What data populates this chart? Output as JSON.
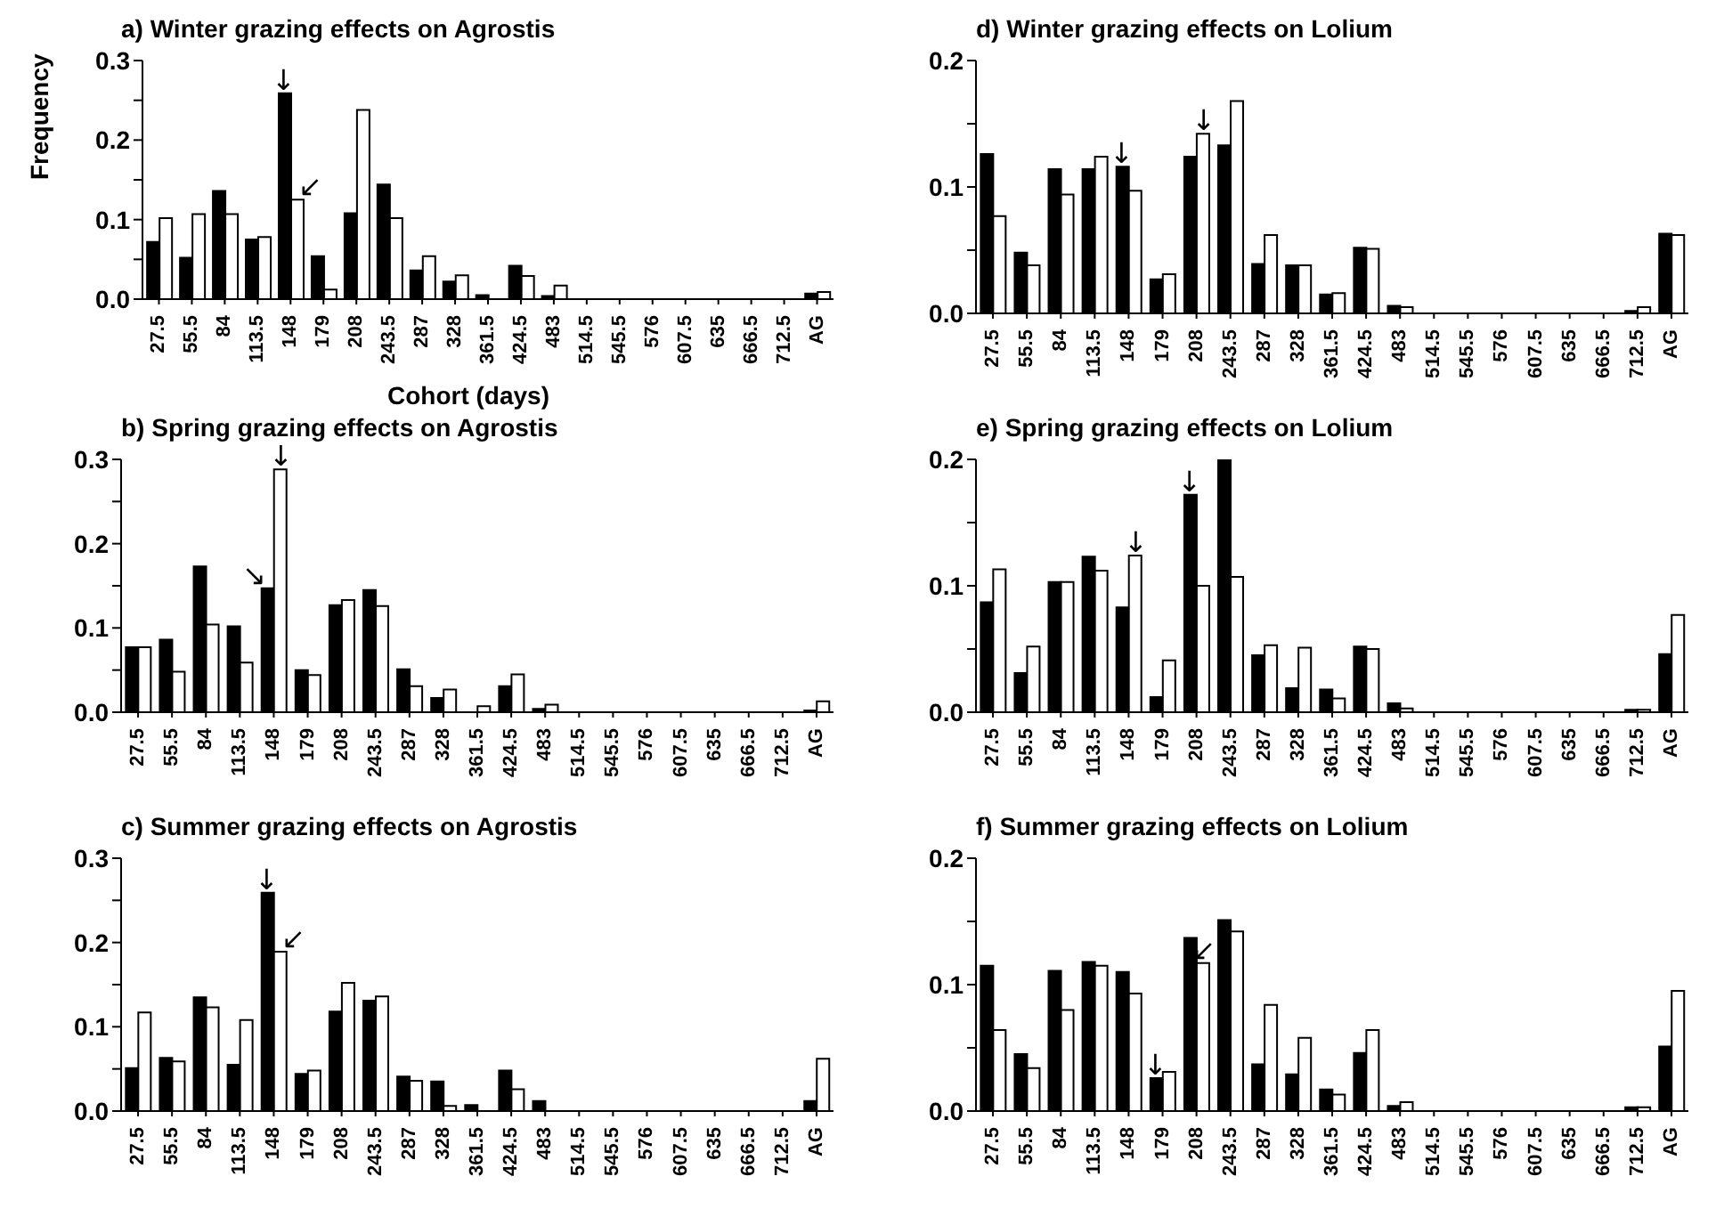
{
  "chart_data": [
    {
      "type": "bar",
      "title": "a) Winter grazing effects on Agrostis",
      "xlabel": "Cohort (days)",
      "ylabel": "Frequency",
      "categories": [
        "27.5",
        "55.5",
        "84",
        "113.5",
        "148",
        "179",
        "208",
        "243.5",
        "287",
        "328",
        "361.5",
        "424.5",
        "483",
        "514.5",
        "545.5",
        "576",
        "607.5",
        "635",
        "666.5",
        "712.5",
        "AG"
      ],
      "series": [
        {
          "color": "#000000",
          "values": [
            0.072,
            0.052,
            0.136,
            0.075,
            0.259,
            0.054,
            0.108,
            0.144,
            0.036,
            0.022,
            0.005,
            0.042,
            0.004,
            0,
            0,
            0,
            0,
            0,
            0,
            0,
            0.007
          ]
        },
        {
          "color": "#ffffff",
          "values": [
            0.102,
            0.107,
            0.107,
            0.078,
            0.125,
            0.012,
            0.238,
            0.102,
            0.054,
            0.03,
            0,
            0.029,
            0.017,
            0,
            0,
            0,
            0,
            0,
            0,
            0,
            0.009
          ]
        }
      ],
      "ylim": [
        0,
        0.3
      ],
      "yticks": [
        {
          "value": 0,
          "label": "0.0"
        },
        {
          "value": 0.05,
          "label": null
        },
        {
          "value": 0.1,
          "label": "0.1"
        },
        {
          "value": 0.15,
          "label": null
        },
        {
          "value": 0.2,
          "label": "0.2"
        },
        {
          "value": 0.25,
          "label": null
        },
        {
          "value": 0.3,
          "label": "0.3"
        }
      ],
      "grid": false,
      "legend": false,
      "annotations": [
        {
          "text": "↓",
          "x": "148",
          "y": 0.259
        },
        {
          "text": "↙",
          "x": "148",
          "y": 0.125
        }
      ]
    },
    {
      "type": "bar",
      "title": "b) Spring grazing effects on Agrostis",
      "categories": [
        "27.5",
        "55.5",
        "84",
        "113.5",
        "148",
        "179",
        "208",
        "243.5",
        "287",
        "328",
        "361.5",
        "424.5",
        "483",
        "514.5",
        "545.5",
        "576",
        "607.5",
        "635",
        "666.5",
        "712.5",
        "AG"
      ],
      "series": [
        {
          "color": "#000000",
          "values": [
            0.077,
            0.086,
            0.173,
            0.102,
            0.147,
            0.05,
            0.127,
            0.145,
            0.051,
            0.017,
            0,
            0.031,
            0.004,
            0,
            0,
            0,
            0,
            0,
            0,
            0,
            0.002
          ]
        },
        {
          "color": "#ffffff",
          "values": [
            0.077,
            0.048,
            0.104,
            0.059,
            0.288,
            0.044,
            0.133,
            0.126,
            0.031,
            0.027,
            0.007,
            0.045,
            0.009,
            0,
            0,
            0,
            0,
            0,
            0,
            0,
            0.013
          ]
        }
      ],
      "ylim": [
        0,
        0.3
      ],
      "yticks": [
        {
          "value": 0,
          "label": "0.0"
        },
        {
          "value": 0.05,
          "label": null
        },
        {
          "value": 0.1,
          "label": "0.1"
        },
        {
          "value": 0.15,
          "label": null
        },
        {
          "value": 0.2,
          "label": "0.2"
        },
        {
          "value": 0.25,
          "label": null
        },
        {
          "value": 0.3,
          "label": "0.3"
        }
      ],
      "grid": false,
      "legend": false,
      "annotations": [
        {
          "text": "↘",
          "x": "148",
          "y": 0.147
        },
        {
          "text": "↓",
          "x": "148",
          "y": 0.288
        }
      ]
    },
    {
      "type": "bar",
      "title": "c) Summer grazing effects on Agrostis",
      "categories": [
        "27.5",
        "55.5",
        "84",
        "113.5",
        "148",
        "179",
        "208",
        "243.5",
        "287",
        "328",
        "361.5",
        "424.5",
        "483",
        "514.5",
        "545.5",
        "576",
        "607.5",
        "635",
        "666.5",
        "712.5",
        "AG"
      ],
      "series": [
        {
          "color": "#000000",
          "values": [
            0.051,
            0.063,
            0.135,
            0.055,
            0.259,
            0.044,
            0.118,
            0.131,
            0.041,
            0.035,
            0.007,
            0.048,
            0.012,
            0,
            0,
            0,
            0,
            0,
            0,
            0,
            0.012
          ]
        },
        {
          "color": "#ffffff",
          "values": [
            0.117,
            0.059,
            0.123,
            0.108,
            0.189,
            0.048,
            0.152,
            0.136,
            0.036,
            0.006,
            0,
            0.026,
            0,
            0,
            0,
            0,
            0,
            0,
            0,
            0,
            0.062
          ]
        }
      ],
      "ylim": [
        0,
        0.3
      ],
      "yticks": [
        {
          "value": 0,
          "label": "0.0"
        },
        {
          "value": 0.05,
          "label": null
        },
        {
          "value": 0.1,
          "label": "0.1"
        },
        {
          "value": 0.15,
          "label": null
        },
        {
          "value": 0.2,
          "label": "0.2"
        },
        {
          "value": 0.25,
          "label": null
        },
        {
          "value": 0.3,
          "label": "0.3"
        }
      ],
      "grid": false,
      "legend": false,
      "annotations": [
        {
          "text": "↓",
          "x": "148",
          "y": 0.259
        },
        {
          "text": "↙",
          "x": "148",
          "y": 0.189
        }
      ]
    },
    {
      "type": "bar",
      "title": "d) Winter grazing effects on Lolium",
      "categories": [
        "27.5",
        "55.5",
        "84",
        "113.5",
        "148",
        "179",
        "208",
        "243.5",
        "287",
        "328",
        "361.5",
        "424.5",
        "483",
        "514.5",
        "545.5",
        "576",
        "607.5",
        "635",
        "666.5",
        "712.5",
        "AG"
      ],
      "series": [
        {
          "color": "#000000",
          "values": [
            0.126,
            0.048,
            0.114,
            0.114,
            0.116,
            0.027,
            0.124,
            0.133,
            0.039,
            0.038,
            0.015,
            0.052,
            0.006,
            0,
            0,
            0,
            0,
            0,
            0,
            0.002,
            0.063
          ]
        },
        {
          "color": "#ffffff",
          "values": [
            0.077,
            0.038,
            0.094,
            0.124,
            0.097,
            0.031,
            0.142,
            0.168,
            0.062,
            0.038,
            0.016,
            0.051,
            0.005,
            0,
            0,
            0,
            0,
            0,
            0,
            0.005,
            0.062
          ]
        }
      ],
      "ylim": [
        0,
        0.2
      ],
      "yticks": [
        {
          "value": 0,
          "label": "0.0"
        },
        {
          "value": 0.05,
          "label": null
        },
        {
          "value": 0.1,
          "label": "0.1"
        },
        {
          "value": 0.15,
          "label": null
        },
        {
          "value": 0.2,
          "label": "0.2"
        }
      ],
      "grid": false,
      "legend": false,
      "annotations": [
        {
          "text": "↓",
          "x": "148",
          "y": 0.116
        },
        {
          "text": "↓",
          "x": "208",
          "y": 0.142
        }
      ]
    },
    {
      "type": "bar",
      "title": "e) Spring grazing effects on Lolium",
      "categories": [
        "27.5",
        "55.5",
        "84",
        "113.5",
        "148",
        "179",
        "208",
        "243.5",
        "287",
        "328",
        "361.5",
        "424.5",
        "483",
        "514.5",
        "545.5",
        "576",
        "607.5",
        "635",
        "666.5",
        "712.5",
        "AG"
      ],
      "series": [
        {
          "color": "#000000",
          "values": [
            0.087,
            0.031,
            0.103,
            0.123,
            0.083,
            0.012,
            0.172,
            0.2,
            0.045,
            0.019,
            0.018,
            0.052,
            0.007,
            0,
            0,
            0,
            0,
            0,
            0,
            0.002,
            0.046
          ]
        },
        {
          "color": "#ffffff",
          "values": [
            0.113,
            0.052,
            0.103,
            0.112,
            0.124,
            0.041,
            0.1,
            0.107,
            0.053,
            0.051,
            0.011,
            0.05,
            0.003,
            0,
            0,
            0,
            0,
            0,
            0,
            0.002,
            0.077
          ]
        }
      ],
      "ylim": [
        0,
        0.2
      ],
      "yticks": [
        {
          "value": 0,
          "label": "0.0"
        },
        {
          "value": 0.05,
          "label": null
        },
        {
          "value": 0.1,
          "label": "0.1"
        },
        {
          "value": 0.15,
          "label": null
        },
        {
          "value": 0.2,
          "label": "0.2"
        }
      ],
      "grid": false,
      "legend": false,
      "annotations": [
        {
          "text": "↓",
          "x": "148",
          "y": 0.124
        },
        {
          "text": "↓",
          "x": "208",
          "y": 0.172
        }
      ]
    },
    {
      "type": "bar",
      "title": "f) Summer grazing effects on Lolium",
      "categories": [
        "27.5",
        "55.5",
        "84",
        "113.5",
        "148",
        "179",
        "208",
        "243.5",
        "287",
        "328",
        "361.5",
        "424.5",
        "483",
        "514.5",
        "545.5",
        "576",
        "607.5",
        "635",
        "666.5",
        "712.5",
        "AG"
      ],
      "series": [
        {
          "color": "#000000",
          "values": [
            0.115,
            0.045,
            0.111,
            0.118,
            0.11,
            0.026,
            0.137,
            0.151,
            0.037,
            0.029,
            0.017,
            0.046,
            0.004,
            0,
            0,
            0,
            0,
            0,
            0,
            0.003,
            0.051
          ]
        },
        {
          "color": "#ffffff",
          "values": [
            0.064,
            0.034,
            0.08,
            0.115,
            0.093,
            0.031,
            0.117,
            0.142,
            0.084,
            0.058,
            0.013,
            0.064,
            0.007,
            0,
            0,
            0,
            0,
            0,
            0,
            0.003,
            0.095
          ]
        }
      ],
      "ylim": [
        0,
        0.2
      ],
      "yticks": [
        {
          "value": 0,
          "label": "0.0"
        },
        {
          "value": 0.05,
          "label": null
        },
        {
          "value": 0.1,
          "label": "0.1"
        },
        {
          "value": 0.15,
          "label": null
        },
        {
          "value": 0.2,
          "label": "0.2"
        }
      ],
      "grid": false,
      "legend": false,
      "annotations": [
        {
          "text": "↓",
          "x": "179",
          "y": 0.026
        },
        {
          "text": "↙",
          "x": "208",
          "y": 0.117
        }
      ]
    }
  ]
}
